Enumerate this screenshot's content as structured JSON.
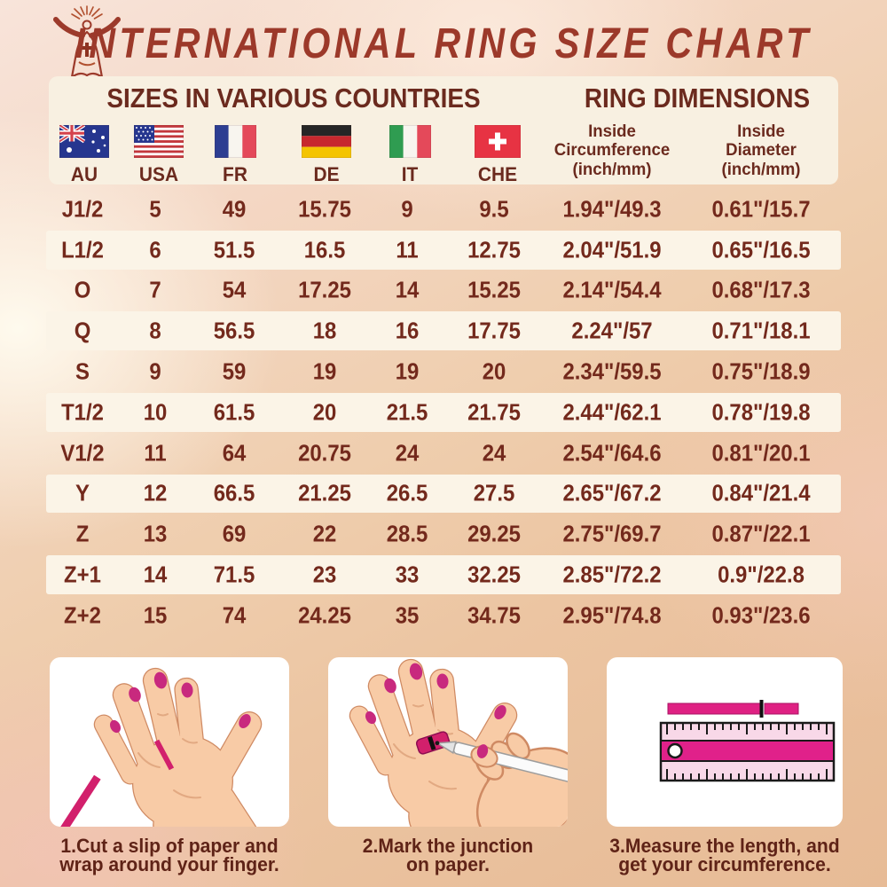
{
  "title": "INTERNATIONAL RING SIZE CHART",
  "sections": {
    "countries": "SIZES IN VARIOUS COUNTRIES",
    "dimensions": "RING DIMENSIONS"
  },
  "flags": [
    {
      "code": "AU",
      "icon": "australia-flag-icon"
    },
    {
      "code": "USA",
      "icon": "usa-flag-icon"
    },
    {
      "code": "FR",
      "icon": "france-flag-icon"
    },
    {
      "code": "DE",
      "icon": "germany-flag-icon"
    },
    {
      "code": "IT",
      "icon": "italy-flag-icon"
    },
    {
      "code": "CHE",
      "icon": "switzerland-flag-icon"
    }
  ],
  "dimension_columns": [
    {
      "line1": "Inside",
      "line2": "Circumference",
      "line3": "(inch/mm)"
    },
    {
      "line1": "Inside",
      "line2": "Diameter",
      "line3": "(inch/mm)"
    }
  ],
  "table": {
    "rows": [
      {
        "au": "J1/2",
        "usa": "5",
        "fr": "49",
        "de": "15.75",
        "it": "9",
        "che": "9.5",
        "circumference": "1.94\"/49.3",
        "diameter": "0.61\"/15.7"
      },
      {
        "au": "L1/2",
        "usa": "6",
        "fr": "51.5",
        "de": "16.5",
        "it": "11",
        "che": "12.75",
        "circumference": "2.04\"/51.9",
        "diameter": "0.65\"/16.5"
      },
      {
        "au": "O",
        "usa": "7",
        "fr": "54",
        "de": "17.25",
        "it": "14",
        "che": "15.25",
        "circumference": "2.14\"/54.4",
        "diameter": "0.68\"/17.3"
      },
      {
        "au": "Q",
        "usa": "8",
        "fr": "56.5",
        "de": "18",
        "it": "16",
        "che": "17.75",
        "circumference": "2.24\"/57",
        "diameter": "0.71\"/18.1"
      },
      {
        "au": "S",
        "usa": "9",
        "fr": "59",
        "de": "19",
        "it": "19",
        "che": "20",
        "circumference": "2.34\"/59.5",
        "diameter": "0.75\"/18.9"
      },
      {
        "au": "T1/2",
        "usa": "10",
        "fr": "61.5",
        "de": "20",
        "it": "21.5",
        "che": "21.75",
        "circumference": "2.44\"/62.1",
        "diameter": "0.78\"/19.8"
      },
      {
        "au": "V1/2",
        "usa": "11",
        "fr": "64",
        "de": "20.75",
        "it": "24",
        "che": "24",
        "circumference": "2.54\"/64.6",
        "diameter": "0.81\"/20.1"
      },
      {
        "au": "Y",
        "usa": "12",
        "fr": "66.5",
        "de": "21.25",
        "it": "26.5",
        "che": "27.5",
        "circumference": "2.65\"/67.2",
        "diameter": "0.84\"/21.4"
      },
      {
        "au": "Z",
        "usa": "13",
        "fr": "69",
        "de": "22",
        "it": "28.5",
        "che": "29.25",
        "circumference": "2.75\"/69.7",
        "diameter": "0.87\"/22.1"
      },
      {
        "au": "Z+1",
        "usa": "14",
        "fr": "71.5",
        "de": "23",
        "it": "33",
        "che": "32.25",
        "circumference": "2.85\"/72.2",
        "diameter": "0.9\"/22.8"
      },
      {
        "au": "Z+2",
        "usa": "15",
        "fr": "74",
        "de": "24.25",
        "it": "35",
        "che": "34.75",
        "circumference": "2.95\"/74.8",
        "diameter": "0.93\"/23.6"
      }
    ]
  },
  "instructions": [
    {
      "line1": "1.Cut a slip of paper and",
      "line2": "wrap around your finger.",
      "illustration": "hand-with-paper-strip"
    },
    {
      "line1": "2.Mark the junction",
      "line2": "on paper.",
      "illustration": "mark-junction-with-pen"
    },
    {
      "line1": "3.Measure the length, and",
      "line2": "get your circumference.",
      "illustration": "ruler-measuring-strip"
    }
  ],
  "colors": {
    "title_red": "#9c392a",
    "text_maroon": "#73291c",
    "caption_maroon": "#5f2317",
    "magenta": "#d2206c",
    "cream_panel": "#f8f0e1",
    "cream_row": "#fbf4e7"
  }
}
